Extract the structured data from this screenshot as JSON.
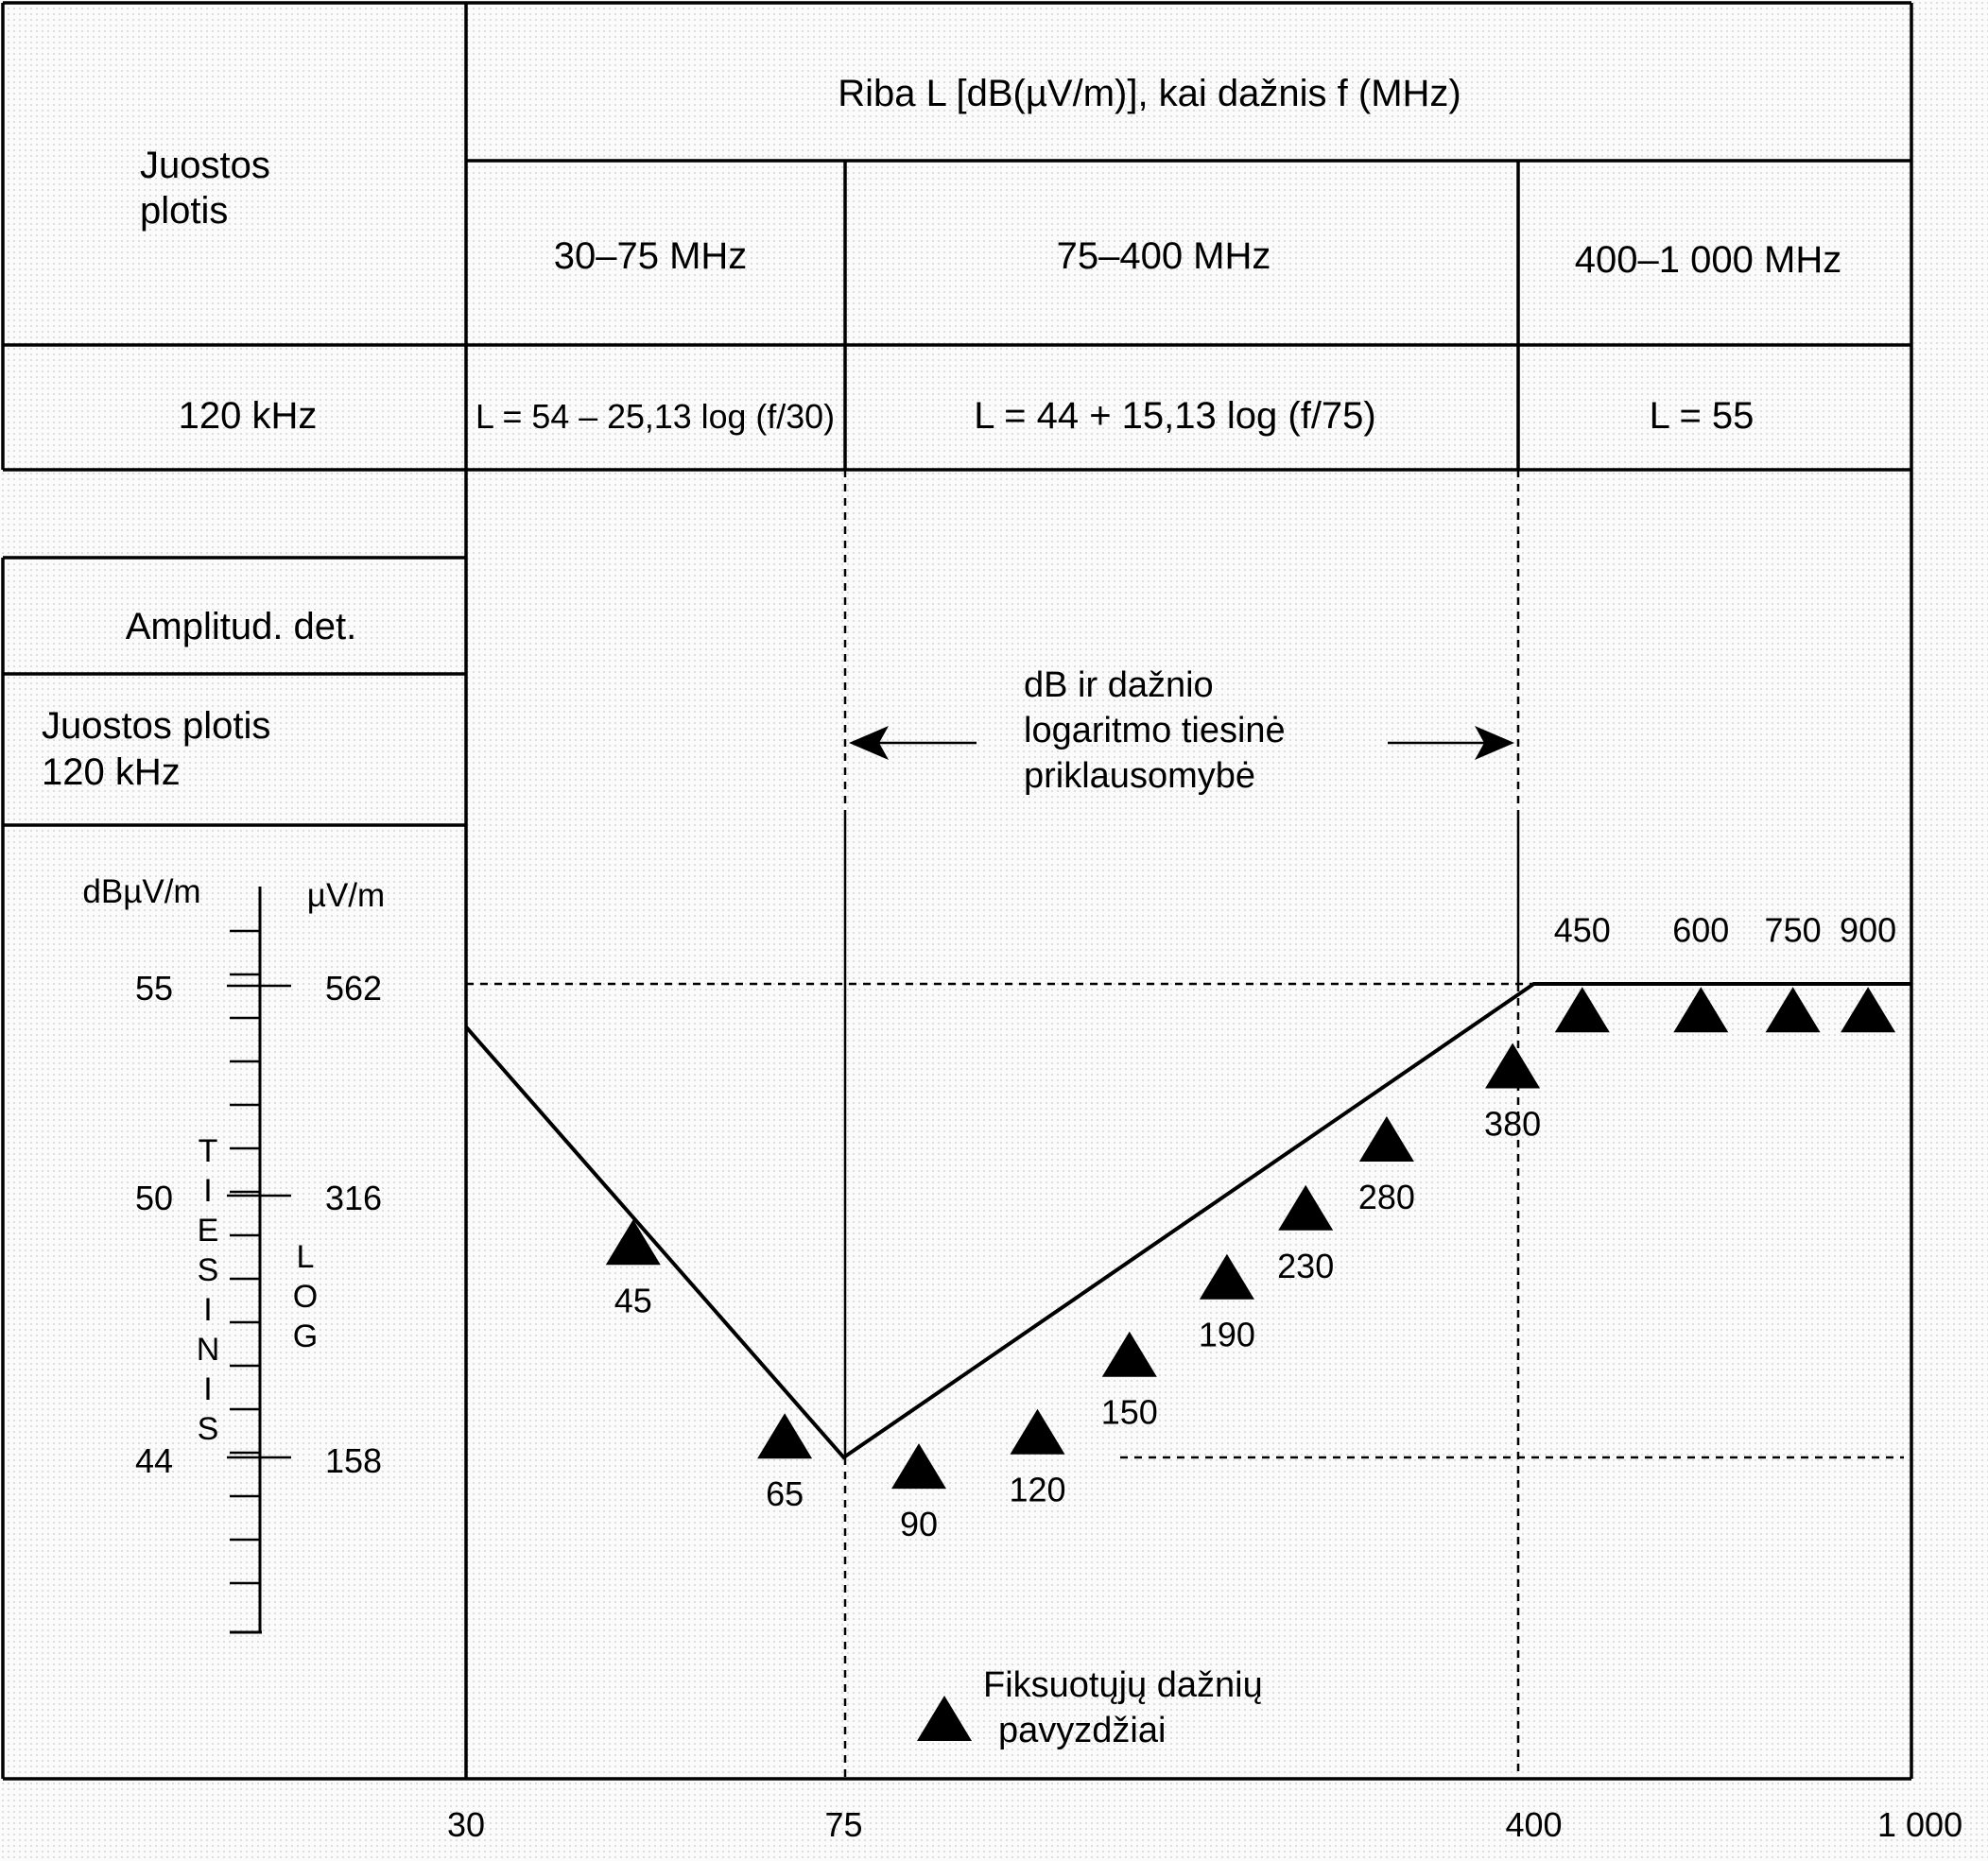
{
  "header": {
    "bandwidth_label_line1": "Juostos",
    "bandwidth_label_line2": "plotis",
    "limit_title": "Riba L [dB(µV/m)], kai dažnis f (MHz)",
    "ranges": [
      "30–75 MHz",
      "75–400 MHz",
      "400–1 000 MHz"
    ],
    "bandwidth_value": "120 kHz",
    "formulas": [
      "L = 54 – 25,13 log (f/30)",
      "L = 44 + 15,13 log (f/75)",
      "L = 55"
    ]
  },
  "side_panel": {
    "detector": "Amplitud. det.",
    "bandwidth_line1": "Juostos plotis",
    "bandwidth_line2": "120 kHz",
    "unit_db": "dBµV/m",
    "unit_uv": "µV/m",
    "db_ticks": [
      "55",
      "50",
      "44"
    ],
    "uv_ticks": [
      "562",
      "316",
      "158"
    ],
    "linear_label": [
      "T",
      "I",
      "E",
      "S",
      "I",
      "N",
      "I",
      "S"
    ],
    "log_label": [
      "L",
      "O",
      "G"
    ]
  },
  "annotation": {
    "line1": "dB ir dažnio",
    "line2": "logaritmo tiesinė",
    "line3": "priklausomybė"
  },
  "legend": {
    "line1": "Fiksuotųjų dažnių",
    "line2": "pavyzdžiai"
  },
  "chart_data": {
    "type": "line",
    "x_scale": "log",
    "xlabel": "",
    "ylabel": "dBµV/m",
    "xlim": [
      30,
      1000
    ],
    "ylim": [
      40,
      58
    ],
    "x_tick_labels": [
      "30",
      "75",
      "400",
      "1 000"
    ],
    "x_ticks": [
      30,
      75,
      400,
      1000
    ],
    "series": [
      {
        "x": [
          30,
          75,
          400,
          1000
        ],
        "y": [
          54,
          44,
          55,
          55
        ]
      }
    ],
    "fixed_frequencies": [
      {
        "label": "45",
        "f": 45,
        "level": 49.0
      },
      {
        "label": "65",
        "f": 65,
        "level": 44.5
      },
      {
        "label": "90",
        "f": 90,
        "level": 43.8
      },
      {
        "label": "120",
        "f": 120,
        "level": 44.6
      },
      {
        "label": "150",
        "f": 150,
        "level": 46.4
      },
      {
        "label": "190",
        "f": 190,
        "level": 48.2
      },
      {
        "label": "230",
        "f": 230,
        "level": 49.8
      },
      {
        "label": "280",
        "f": 280,
        "level": 51.4
      },
      {
        "label": "380",
        "f": 380,
        "level": 53.1
      },
      {
        "label": "450",
        "f": 450,
        "level": 54.4
      },
      {
        "label": "600",
        "f": 600,
        "level": 54.4
      },
      {
        "label": "750",
        "f": 750,
        "level": 54.4
      },
      {
        "label": "900",
        "f": 900,
        "level": 54.4
      }
    ],
    "reference_levels": [
      55,
      44
    ],
    "grid": false
  }
}
